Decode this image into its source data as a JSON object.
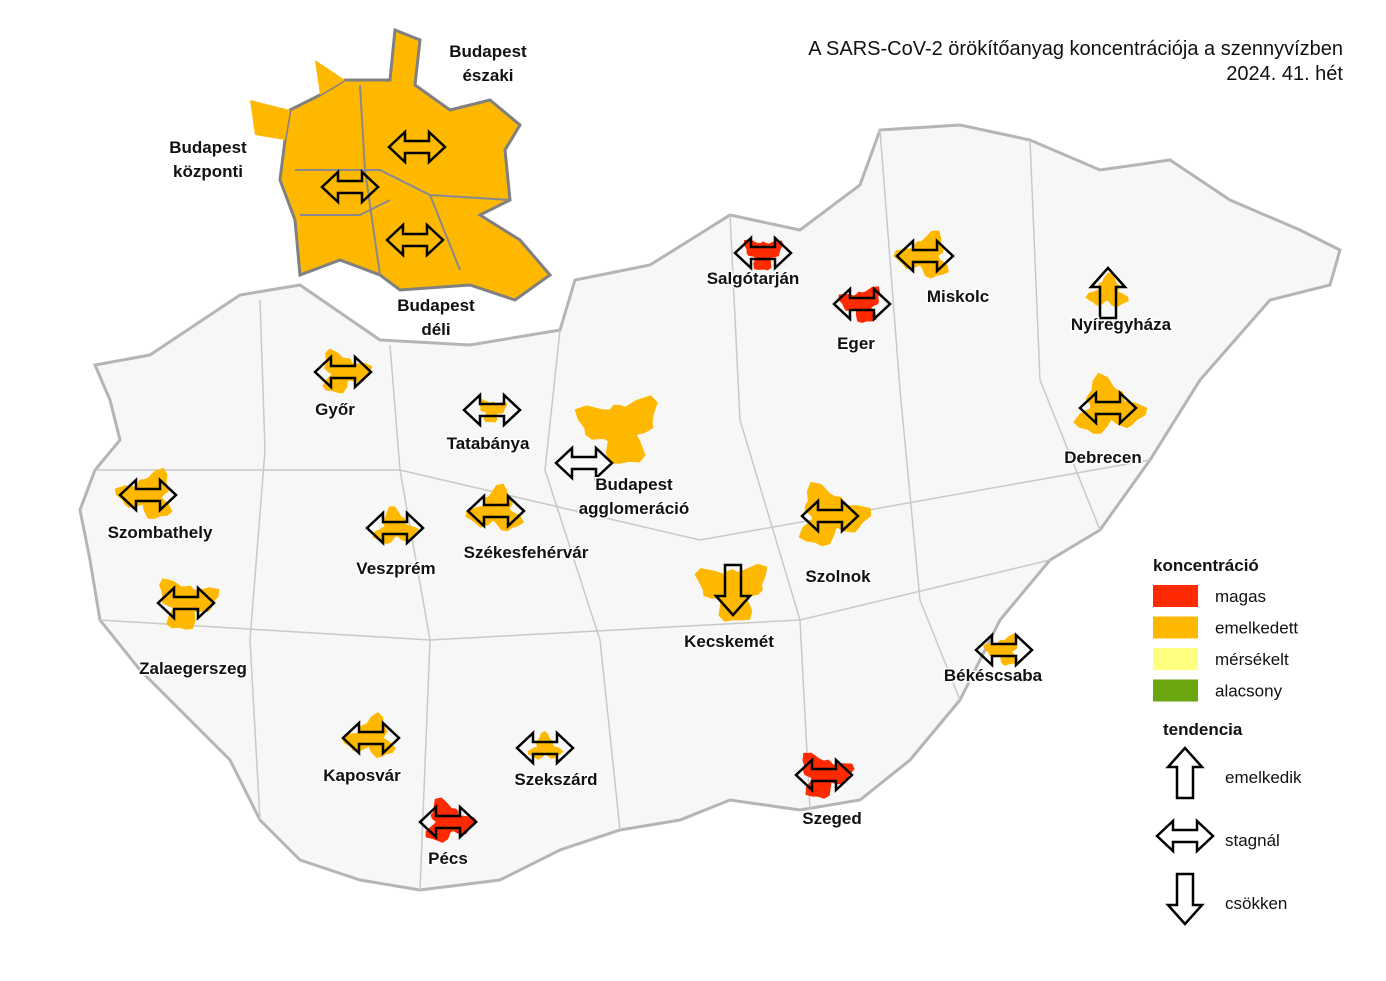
{
  "title": [
    "A SARS-CoV-2 örökítőanyag koncentrációja a szennyvízben",
    "2024. 41. hét"
  ],
  "sites": [
    {
      "label": [
        "Budapest",
        "északi"
      ],
      "level": "emelkedett",
      "trend": "stagnál"
    },
    {
      "label": [
        "Budapest",
        "központi"
      ],
      "level": "emelkedett",
      "trend": "stagnál"
    },
    {
      "label": [
        "Budapest",
        "déli"
      ],
      "level": "emelkedett",
      "trend": "stagnál"
    },
    {
      "label": [
        "Salgótarján"
      ],
      "level": "magas",
      "trend": "stagnál"
    },
    {
      "label": [
        "Eger"
      ],
      "level": "magas",
      "trend": "stagnál"
    },
    {
      "label": [
        "Miskolc"
      ],
      "level": "emelkedett",
      "trend": "stagnál"
    },
    {
      "label": [
        "Nyíregyháza"
      ],
      "level": "emelkedett",
      "trend": "emelkedik"
    },
    {
      "label": [
        "Debrecen"
      ],
      "level": "emelkedett",
      "trend": "stagnál"
    },
    {
      "label": [
        "Győr"
      ],
      "level": "emelkedett",
      "trend": "stagnál"
    },
    {
      "label": [
        "Tatabánya"
      ],
      "level": "emelkedett",
      "trend": "stagnál"
    },
    {
      "label": [
        "Budapest",
        "agglomeráció"
      ],
      "level": "emelkedett",
      "trend": "stagnál"
    },
    {
      "label": [
        "Szombathely"
      ],
      "level": "emelkedett",
      "trend": "stagnál"
    },
    {
      "label": [
        "Székesfehérvár"
      ],
      "level": "emelkedett",
      "trend": "stagnál"
    },
    {
      "label": [
        "Veszprém"
      ],
      "level": "emelkedett",
      "trend": "stagnál"
    },
    {
      "label": [
        "Szolnok"
      ],
      "level": "emelkedett",
      "trend": "stagnál"
    },
    {
      "label": [
        "Zalaegerszeg"
      ],
      "level": "emelkedett",
      "trend": "stagnál"
    },
    {
      "label": [
        "Kecskemét"
      ],
      "level": "emelkedett",
      "trend": "csökken"
    },
    {
      "label": [
        "Békéscsaba"
      ],
      "level": "emelkedett",
      "trend": "stagnál"
    },
    {
      "label": [
        "Kaposvár"
      ],
      "level": "emelkedett",
      "trend": "stagnál"
    },
    {
      "label": [
        "Szekszárd"
      ],
      "level": "emelkedett",
      "trend": "stagnál"
    },
    {
      "label": [
        "Pécs"
      ],
      "level": "magas",
      "trend": "stagnál"
    },
    {
      "label": [
        "Szeged"
      ],
      "level": "magas",
      "trend": "stagnál"
    }
  ],
  "legend": {
    "concentration": {
      "title": "koncentráció",
      "items": [
        {
          "label": "magas",
          "color": "#ff2a00"
        },
        {
          "label": "emelkedett",
          "color": "#ffb800"
        },
        {
          "label": "mérsékelt",
          "color": "#ffff80"
        },
        {
          "label": "alacsony",
          "color": "#6aa60f"
        }
      ]
    },
    "trend": {
      "title": "tendencia",
      "items": [
        {
          "label": "emelkedik",
          "direction": "up"
        },
        {
          "label": "stagnál",
          "direction": "both"
        },
        {
          "label": "csökken",
          "direction": "down"
        }
      ]
    }
  }
}
